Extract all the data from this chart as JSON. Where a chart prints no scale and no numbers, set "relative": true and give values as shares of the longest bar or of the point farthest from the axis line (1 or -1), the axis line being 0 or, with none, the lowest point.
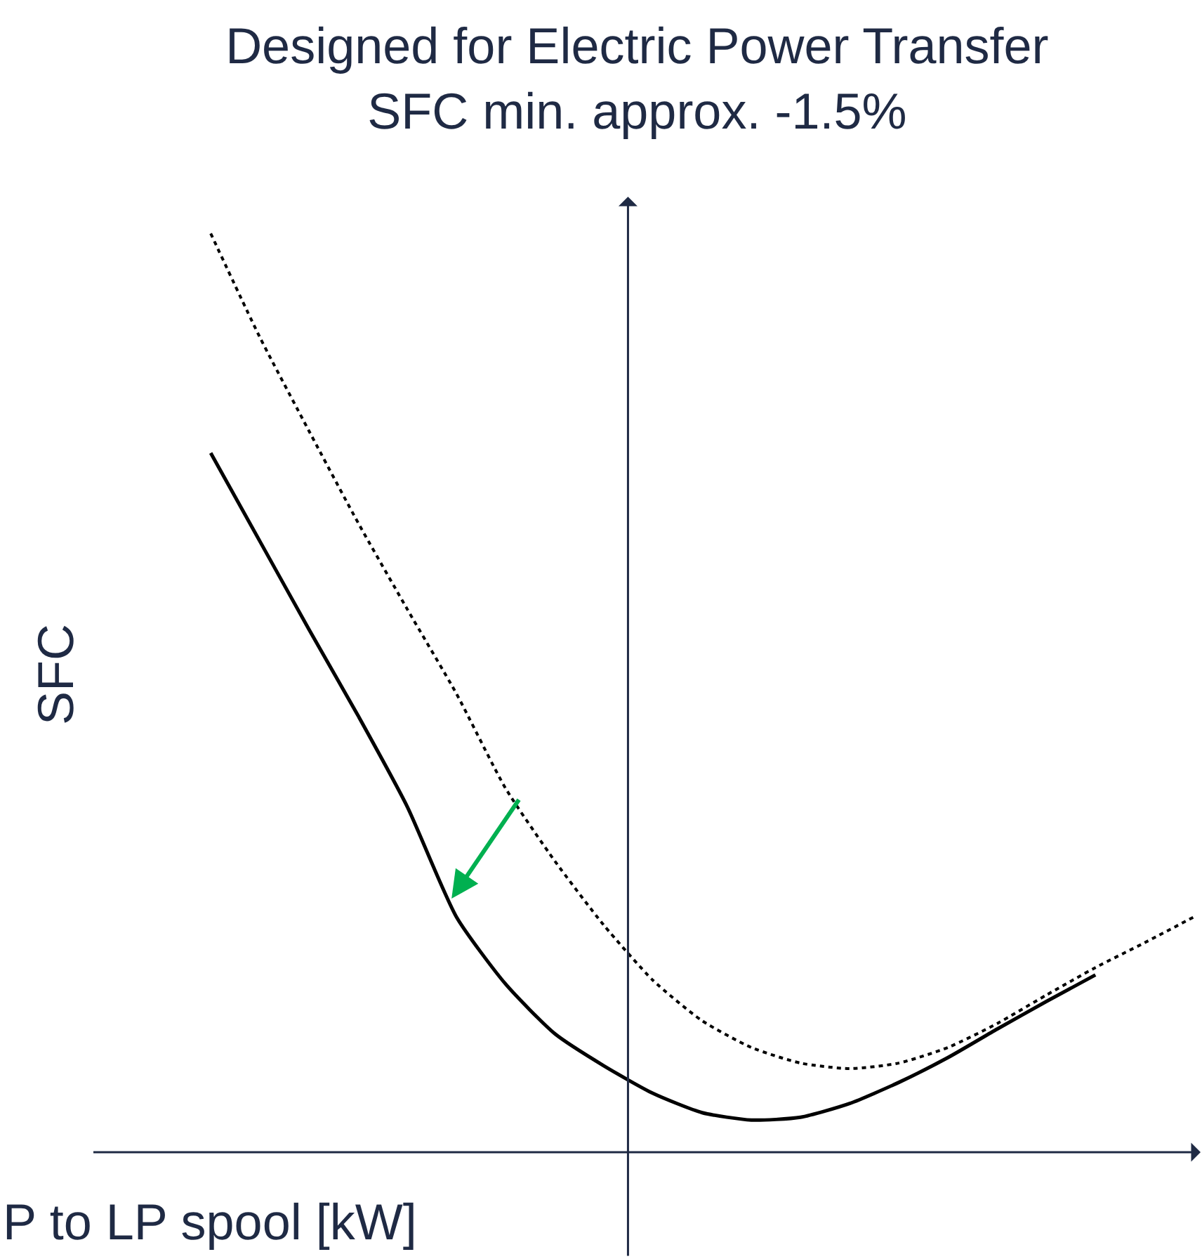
{
  "chart_data": {
    "type": "line",
    "relative": true,
    "title": "Designed for Electric Power Transfer\nSFC min. approx. -1.5%",
    "xlabel": "P to LP spool [kW]",
    "ylabel": "SFC",
    "categories": [
      null,
      null,
      null,
      null,
      null,
      null,
      null,
      null,
      null,
      null,
      null,
      null,
      null,
      null,
      null,
      null,
      null,
      null,
      null,
      null,
      null
    ],
    "series": [
      {
        "color": "#000000",
        "line_style": "dotted",
        "values": [
          1.0,
          0.887,
          0.785,
          0.685,
          0.591,
          0.499,
          0.396,
          0.317,
          0.247,
          0.187,
          0.143,
          0.114,
          0.097,
          0.091,
          0.097,
          0.114,
          0.14,
          0.171,
          0.201,
          0.228,
          0.256
        ]
      },
      {
        "color": "#000000",
        "line_style": "solid",
        "values": [
          0.761,
          0.665,
          0.569,
          0.475,
          0.376,
          0.256,
          0.183,
          0.129,
          0.094,
          0.064,
          0.043,
          0.035,
          0.038,
          0.053,
          0.076,
          0.103,
          0.134,
          0.164,
          0.193,
          null,
          null
        ]
      }
    ],
    "marker": "none"
  }
}
